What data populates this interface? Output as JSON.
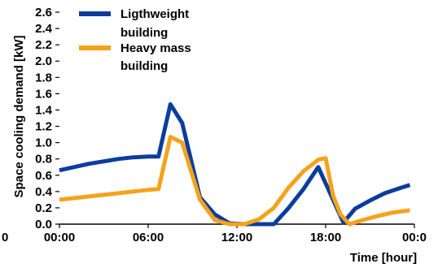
{
  "chart_data": {
    "type": "line",
    "title": "",
    "xlabel": "Time [hour]",
    "ylabel": "Space cooling demand [kW]",
    "xlim": [
      0,
      24
    ],
    "ylim": [
      0,
      2.6
    ],
    "x_ticks": [
      {
        "value": 0,
        "label": "00:00"
      },
      {
        "value": 6,
        "label": "06:00"
      },
      {
        "value": 12,
        "label": "12:00"
      },
      {
        "value": 18,
        "label": "18:00"
      },
      {
        "value": 24,
        "label": "00:0"
      }
    ],
    "left_clipped_tick_label": "0",
    "y_ticks": [
      0,
      0.2,
      0.4,
      0.6,
      0.8,
      1.0,
      1.2,
      1.4,
      1.6,
      1.8,
      2.0,
      2.2,
      2.4,
      2.6
    ],
    "y_tick_labels": [
      "0.0",
      "0.2",
      "0.4",
      "0.6",
      "0.8",
      "1.0",
      "1.2",
      "1.4",
      "1.6",
      "1.8",
      "2.0",
      "2.2",
      "2.4",
      "2.6"
    ],
    "grid": false,
    "legend_position": "top-left",
    "series": [
      {
        "name": "Ligthweight building",
        "legend_lines": [
          "Ligthweight",
          "building"
        ],
        "color": "#0b3d9e",
        "points": [
          [
            0,
            0.66
          ],
          [
            1,
            0.7
          ],
          [
            2,
            0.74
          ],
          [
            3,
            0.77
          ],
          [
            4,
            0.8
          ],
          [
            5,
            0.82
          ],
          [
            6,
            0.83
          ],
          [
            6.7,
            0.83
          ],
          [
            7.5,
            1.47
          ],
          [
            8.3,
            1.24
          ],
          [
            9.5,
            0.33
          ],
          [
            10.5,
            0.12
          ],
          [
            11.5,
            0.01
          ],
          [
            12.5,
            0.0
          ],
          [
            13.5,
            0.0
          ],
          [
            14.5,
            0.0
          ],
          [
            15.5,
            0.2
          ],
          [
            16.5,
            0.43
          ],
          [
            17.5,
            0.7
          ],
          [
            18.5,
            0.3
          ],
          [
            19.2,
            0.02
          ],
          [
            20,
            0.19
          ],
          [
            21,
            0.29
          ],
          [
            22,
            0.38
          ],
          [
            23,
            0.44
          ],
          [
            23.7,
            0.48
          ]
        ]
      },
      {
        "name": "Heavy mass building",
        "legend_lines": [
          "Heavy mass",
          "building"
        ],
        "color": "#f5a21b",
        "points": [
          [
            0,
            0.3
          ],
          [
            1,
            0.32
          ],
          [
            2,
            0.34
          ],
          [
            3,
            0.36
          ],
          [
            4,
            0.38
          ],
          [
            5,
            0.4
          ],
          [
            6,
            0.42
          ],
          [
            6.7,
            0.43
          ],
          [
            7.5,
            1.07
          ],
          [
            8.3,
            1.0
          ],
          [
            9.5,
            0.3
          ],
          [
            10.5,
            0.05
          ],
          [
            11.5,
            0.0
          ],
          [
            12.5,
            0.0
          ],
          [
            13.5,
            0.06
          ],
          [
            14.5,
            0.2
          ],
          [
            15.5,
            0.45
          ],
          [
            16.5,
            0.65
          ],
          [
            17.5,
            0.79
          ],
          [
            18,
            0.81
          ],
          [
            18.5,
            0.35
          ],
          [
            19.0,
            0.12
          ],
          [
            19.6,
            0.0
          ],
          [
            20.5,
            0.05
          ],
          [
            21.5,
            0.1
          ],
          [
            22.5,
            0.14
          ],
          [
            23.7,
            0.17
          ]
        ]
      }
    ]
  }
}
